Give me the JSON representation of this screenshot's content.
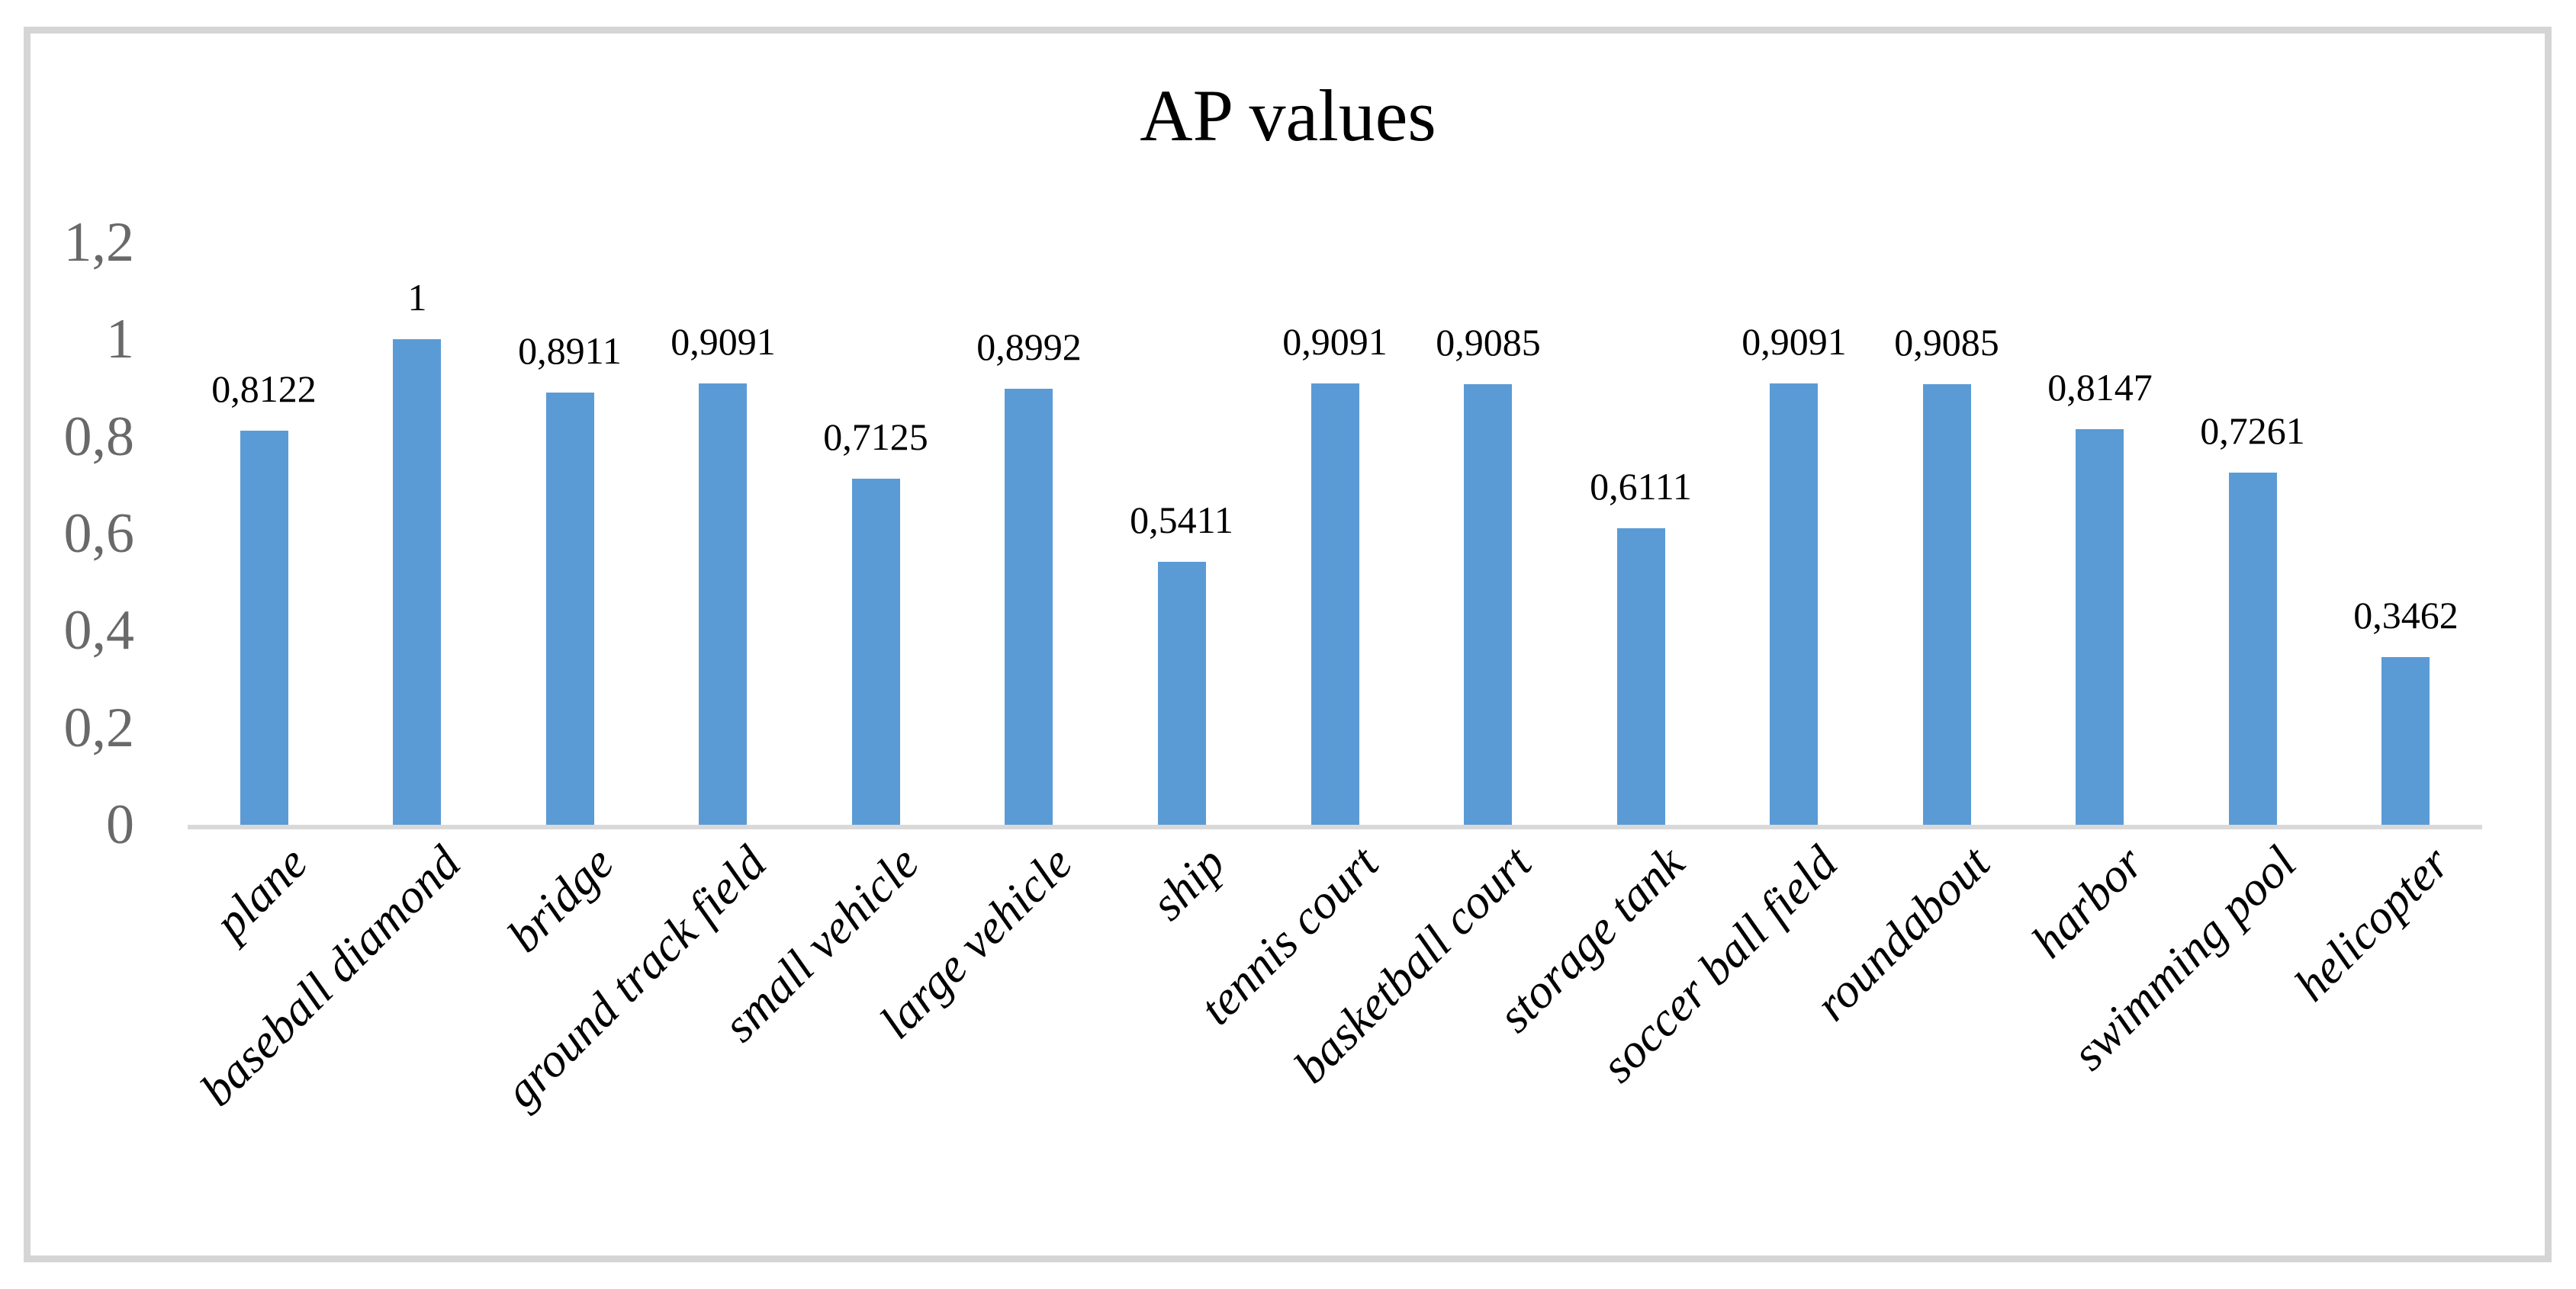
{
  "chart_data": {
    "type": "bar",
    "title": "AP values",
    "categories": [
      "plane",
      "baseball diamond",
      "bridge",
      "ground track field",
      "small vehicle",
      "large vehicle",
      "ship",
      "tennis court",
      "basketball court",
      "storage tank",
      "soccer ball field",
      "roundabout",
      "harbor",
      "swimming pool",
      "helicopter"
    ],
    "values": [
      0.8122,
      1,
      0.8911,
      0.9091,
      0.7125,
      0.8992,
      0.5411,
      0.9091,
      0.9085,
      0.6111,
      0.9091,
      0.9085,
      0.8147,
      0.7261,
      0.3462
    ],
    "value_labels": [
      "0,8122",
      "1",
      "0,8911",
      "0,9091",
      "0,7125",
      "0,8992",
      "0,5411",
      "0,9091",
      "0,9085",
      "0,6111",
      "0,9091",
      "0,9085",
      "0,8147",
      "0,7261",
      "0,3462"
    ],
    "y_ticks": [
      {
        "value": 1.2,
        "label": "1,2"
      },
      {
        "value": 1,
        "label": "1"
      },
      {
        "value": 0.8,
        "label": "0,8"
      },
      {
        "value": 0.6,
        "label": "0,6"
      },
      {
        "value": 0.4,
        "label": "0,4"
      },
      {
        "value": 0.2,
        "label": "0,2"
      },
      {
        "value": 0,
        "label": "0"
      }
    ],
    "ylim": [
      0,
      1.2
    ],
    "xlabel": "",
    "ylabel": "",
    "grid": false,
    "legend": "none",
    "decimal_separator": ",",
    "bar_color": "#5b9bd5",
    "axis_line_color": "#d9d9d9",
    "tick_label_color": "#696969",
    "data_label_color": "#000000",
    "title_color": "#000000",
    "frame_border_color": "#d5d5d5"
  }
}
